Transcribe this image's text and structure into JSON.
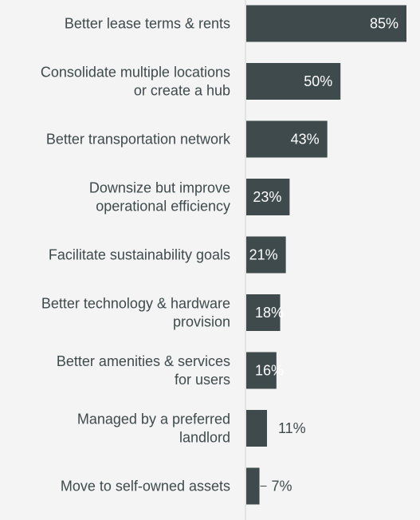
{
  "chart_data": {
    "type": "bar",
    "orientation": "horizontal",
    "title": "",
    "xlabel": "",
    "ylabel": "",
    "xlim": [
      0,
      100
    ],
    "grid": false,
    "categories": [
      [
        "Better lease terms & rents"
      ],
      [
        "Consolidate multiple locations",
        "or create a hub"
      ],
      [
        "Better transportation network"
      ],
      [
        "Downsize but improve",
        "operational efficiency"
      ],
      [
        "Facilitate sustainability goals"
      ],
      [
        "Better technology & hardware",
        "provision"
      ],
      [
        "Better amenities & services",
        "for users"
      ],
      [
        "Managed by a preferred",
        "landlord"
      ],
      [
        "Move to self-owned assets"
      ]
    ],
    "values": [
      85,
      50,
      43,
      23,
      21,
      18,
      16,
      11,
      7
    ],
    "value_labels": [
      "85%",
      "50%",
      "43%",
      "23%",
      "21%",
      "18%",
      "16%",
      "11%",
      "7%"
    ],
    "colors": {
      "bar": "#3f4a4c",
      "label_inside": "#ffffff",
      "label_outside": "#3f4a4c",
      "axis": "#cfd3d3",
      "background": "#f4f4f4"
    }
  }
}
